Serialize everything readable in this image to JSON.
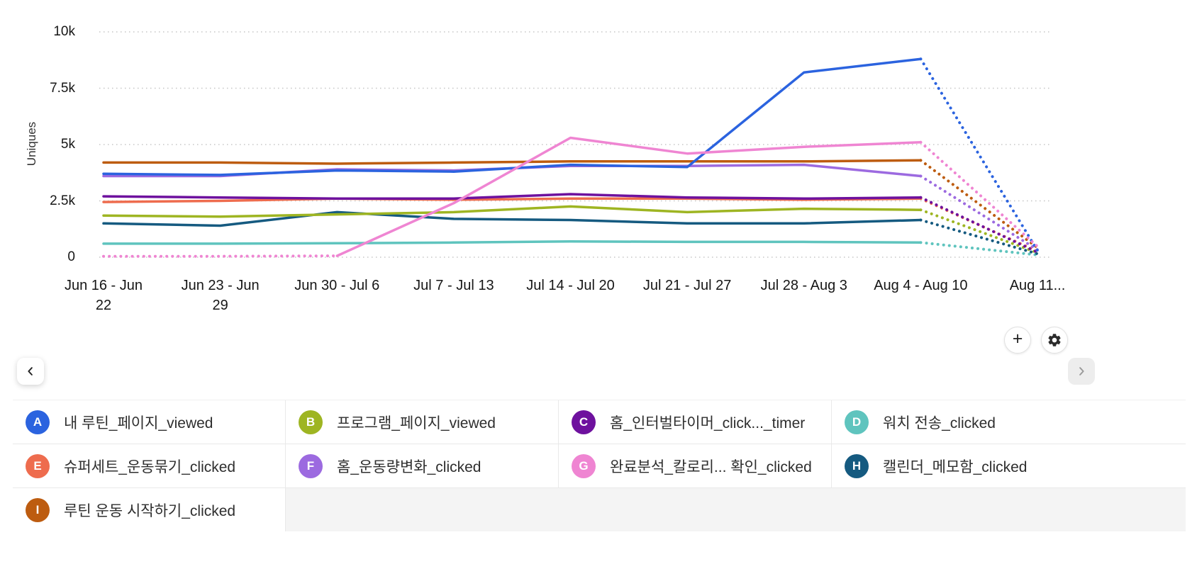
{
  "chart_data": {
    "type": "line",
    "title": "",
    "xlabel": "",
    "ylabel": "Uniques",
    "ylim": [
      0,
      10000
    ],
    "grid": "dotted-horizontal",
    "legend_position": "bottom",
    "y_ticks": [
      {
        "label": "0",
        "value": 0
      },
      {
        "label": "2.5k",
        "value": 2500
      },
      {
        "label": "5k",
        "value": 5000
      },
      {
        "label": "7.5k",
        "value": 7500
      },
      {
        "label": "10k",
        "value": 10000
      }
    ],
    "categories": [
      "Jun 16 - Jun 22",
      "Jun 23 - Jun 29",
      "Jun 30 - Jul 6",
      "Jul 7 - Jul 13",
      "Jul 14 - Jul 20",
      "Jul 21 - Jul 27",
      "Jul 28 - Aug 3",
      "Aug 4 - Aug 10",
      "Aug 11..."
    ],
    "partial_from": 7,
    "series": [
      {
        "letter": "A",
        "name": "내 루틴_페이지_viewed",
        "color": "#2b63df",
        "values": [
          3700,
          3650,
          3850,
          3800,
          4100,
          4000,
          8200,
          8800,
          300
        ]
      },
      {
        "letter": "B",
        "name": "프로그램_페이지_viewed",
        "color": "#9eb522",
        "values": [
          1850,
          1800,
          1900,
          2000,
          2250,
          2000,
          2150,
          2100,
          200
        ]
      },
      {
        "letter": "C",
        "name": "홈_인터벌타이머_click..._timer",
        "color": "#6e119e",
        "values": [
          2700,
          2650,
          2600,
          2600,
          2800,
          2650,
          2600,
          2650,
          220
        ]
      },
      {
        "letter": "D",
        "name": "워치 전송_clicked",
        "color": "#5fc4be",
        "values": [
          600,
          600,
          620,
          650,
          700,
          680,
          680,
          650,
          100
        ]
      },
      {
        "letter": "E",
        "name": "슈퍼세트_운동묶기_clicked",
        "color": "#ee6c4e",
        "values": [
          2450,
          2500,
          2600,
          2550,
          2600,
          2600,
          2550,
          2600,
          260
        ]
      },
      {
        "letter": "F",
        "name": "홈_운동량변화_clicked",
        "color": "#9c6ae0",
        "values": [
          3600,
          3600,
          3900,
          3850,
          4050,
          4050,
          4100,
          3600,
          330
        ]
      },
      {
        "letter": "G",
        "name": "완료분석_칼로리... 확인_clicked",
        "color": "#ef85d2",
        "values": [
          40,
          40,
          60,
          2400,
          5300,
          4600,
          4900,
          5100,
          480
        ],
        "solid_from": 2
      },
      {
        "letter": "H",
        "name": "캘린더_메모함_clicked",
        "color": "#155a80",
        "values": [
          1500,
          1400,
          2000,
          1700,
          1650,
          1500,
          1500,
          1650,
          150
        ]
      },
      {
        "letter": "I",
        "name": "루틴 운동 시작하기_clicked",
        "color": "#bd5c10",
        "values": [
          4200,
          4200,
          4150,
          4200,
          4250,
          4250,
          4250,
          4300,
          420
        ]
      }
    ]
  },
  "controls": {
    "add_button": "+"
  },
  "icons": {
    "settings": "gear-icon",
    "prev": "chevron-left-icon",
    "next": "chevron-right-icon",
    "add": "plus-icon"
  }
}
